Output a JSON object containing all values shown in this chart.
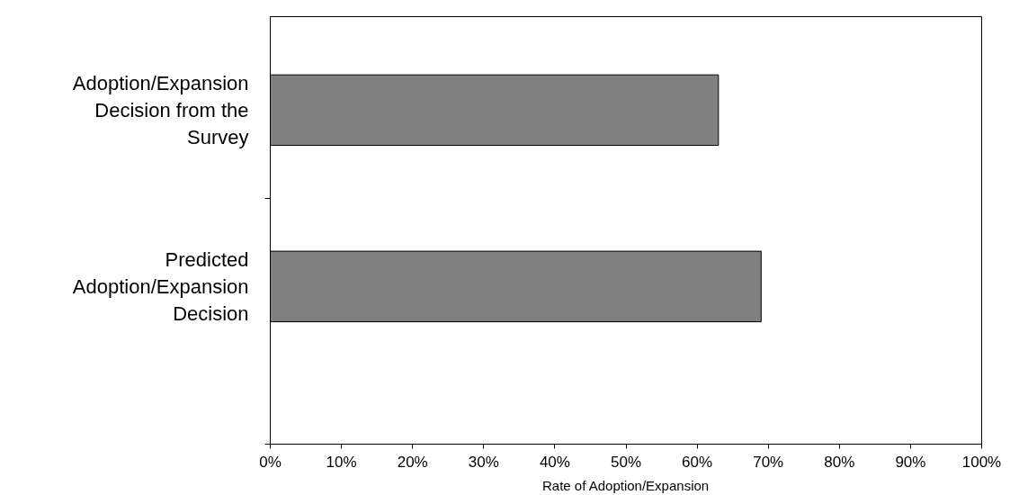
{
  "chart_data": {
    "type": "bar",
    "orientation": "horizontal",
    "xlabel": "Rate of Adoption/Expansion",
    "categories": [
      "Adoption/Expansion Decision from the Survey",
      "Predicted Adoption/Expansion Decision"
    ],
    "values": [
      63,
      69
    ],
    "color": "#808080",
    "xlim": [
      0,
      100
    ],
    "xticks": [
      {
        "value": 0,
        "label": "0%"
      },
      {
        "value": 10,
        "label": "10%"
      },
      {
        "value": 20,
        "label": "20%"
      },
      {
        "value": 30,
        "label": "30%"
      },
      {
        "value": 40,
        "label": "40%"
      },
      {
        "value": 50,
        "label": "50%"
      },
      {
        "value": 60,
        "label": "60%"
      },
      {
        "value": 70,
        "label": "70%"
      },
      {
        "value": 80,
        "label": "80%"
      },
      {
        "value": 90,
        "label": "90%"
      },
      {
        "value": 100,
        "label": "100%"
      }
    ],
    "grid": false
  }
}
